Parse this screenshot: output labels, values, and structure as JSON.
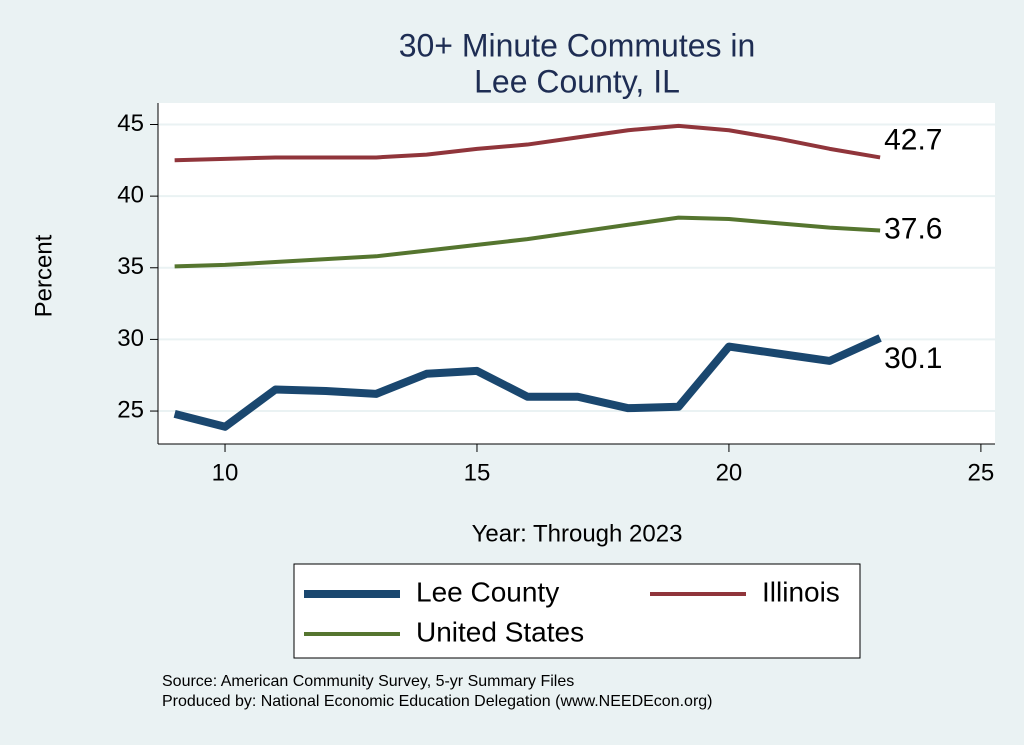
{
  "chart_data": {
    "type": "line",
    "title": [
      "30+ Minute Commutes in",
      "Lee County, IL"
    ],
    "x_label": "Year: Through 2023",
    "y_label": "Percent",
    "x": [
      9,
      10,
      11,
      12,
      13,
      14,
      15,
      16,
      17,
      18,
      19,
      20,
      21,
      22,
      23
    ],
    "series": [
      {
        "name": "Lee County",
        "color": "#1a476f",
        "values": [
          24.8,
          23.9,
          26.5,
          26.4,
          26.2,
          27.6,
          27.8,
          26.0,
          26.0,
          25.2,
          25.3,
          29.5,
          29.0,
          28.5,
          30.1
        ]
      },
      {
        "name": "Illinois",
        "color": "#90353b",
        "values": [
          42.5,
          42.6,
          42.7,
          42.7,
          42.7,
          42.9,
          43.3,
          43.6,
          44.1,
          44.6,
          44.9,
          44.6,
          44.0,
          43.3,
          42.7
        ]
      },
      {
        "name": "United States",
        "color": "#55752f",
        "values": [
          35.1,
          35.2,
          35.4,
          35.6,
          35.8,
          36.2,
          36.6,
          37.0,
          37.5,
          38.0,
          38.5,
          38.4,
          38.1,
          37.8,
          37.6
        ]
      }
    ],
    "xlim": [
      8.67,
      25.28
    ],
    "xticks": [
      10,
      15,
      20,
      25
    ],
    "ylim": [
      22.7,
      46.5
    ],
    "yticks": [
      25,
      30,
      35,
      40,
      45
    ],
    "grid": true,
    "notes": [
      "Source: American Community Survey, 5-yr Summary Files",
      "Produced by: National Economic Education Delegation (www.NEEDEcon.org)"
    ]
  }
}
